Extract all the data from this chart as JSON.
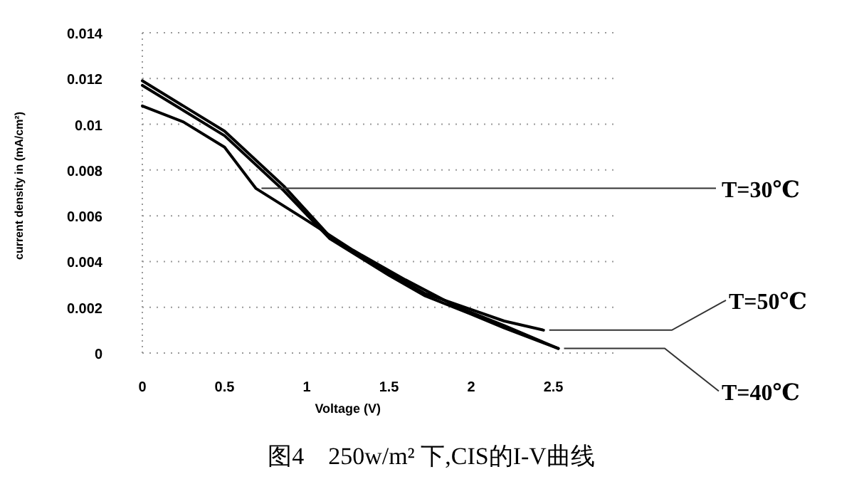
{
  "chart_data": {
    "type": "line",
    "xlabel": "Voltage (V)",
    "ylabel": "current density in (mA/cm²)",
    "xlim": [
      0,
      2.9
    ],
    "ylim": [
      0,
      0.014
    ],
    "xticks": [
      0,
      0.5,
      1,
      1.5,
      2,
      2.5
    ],
    "yticks": [
      0,
      0.002,
      0.004,
      0.006,
      0.008,
      0.01,
      0.012,
      0.014
    ],
    "grid": "y",
    "series": [
      {
        "color": "#000000",
        "x": [
          0,
          0.25,
          0.5,
          0.69,
          1.0,
          1.28,
          1.6,
          1.92,
          2.2,
          2.53
        ],
        "values": [
          0.0108,
          0.0101,
          0.009,
          0.0072,
          0.0058,
          0.0045,
          0.0032,
          0.002,
          0.0012,
          0.0002
        ]
      },
      {
        "color": "#000000",
        "x": [
          0,
          0.25,
          0.5,
          0.86,
          1.14,
          1.5,
          1.72,
          2.0,
          2.2,
          2.44
        ],
        "values": [
          0.0119,
          0.0108,
          0.0097,
          0.0073,
          0.0051,
          0.0035,
          0.0026,
          0.0019,
          0.0014,
          0.001
        ]
      },
      {
        "color": "#000000",
        "x": [
          0,
          0.25,
          0.5,
          0.86,
          1.14,
          1.5,
          1.72,
          2.0,
          2.2,
          2.53
        ],
        "values": [
          0.0117,
          0.0106,
          0.0095,
          0.0071,
          0.005,
          0.0034,
          0.0025,
          0.0017,
          0.0011,
          0.0002
        ]
      }
    ],
    "annotations": [
      {
        "text": "T=30℃",
        "x": 0.69,
        "y": 0.0072
      },
      {
        "text": "T=50℃",
        "x": 2.44,
        "y": 0.001
      },
      {
        "text": "T=40℃",
        "x": 2.53,
        "y": 0.0002
      },
      "图4　250w/m² 下,CIS的I-V曲线"
    ]
  }
}
